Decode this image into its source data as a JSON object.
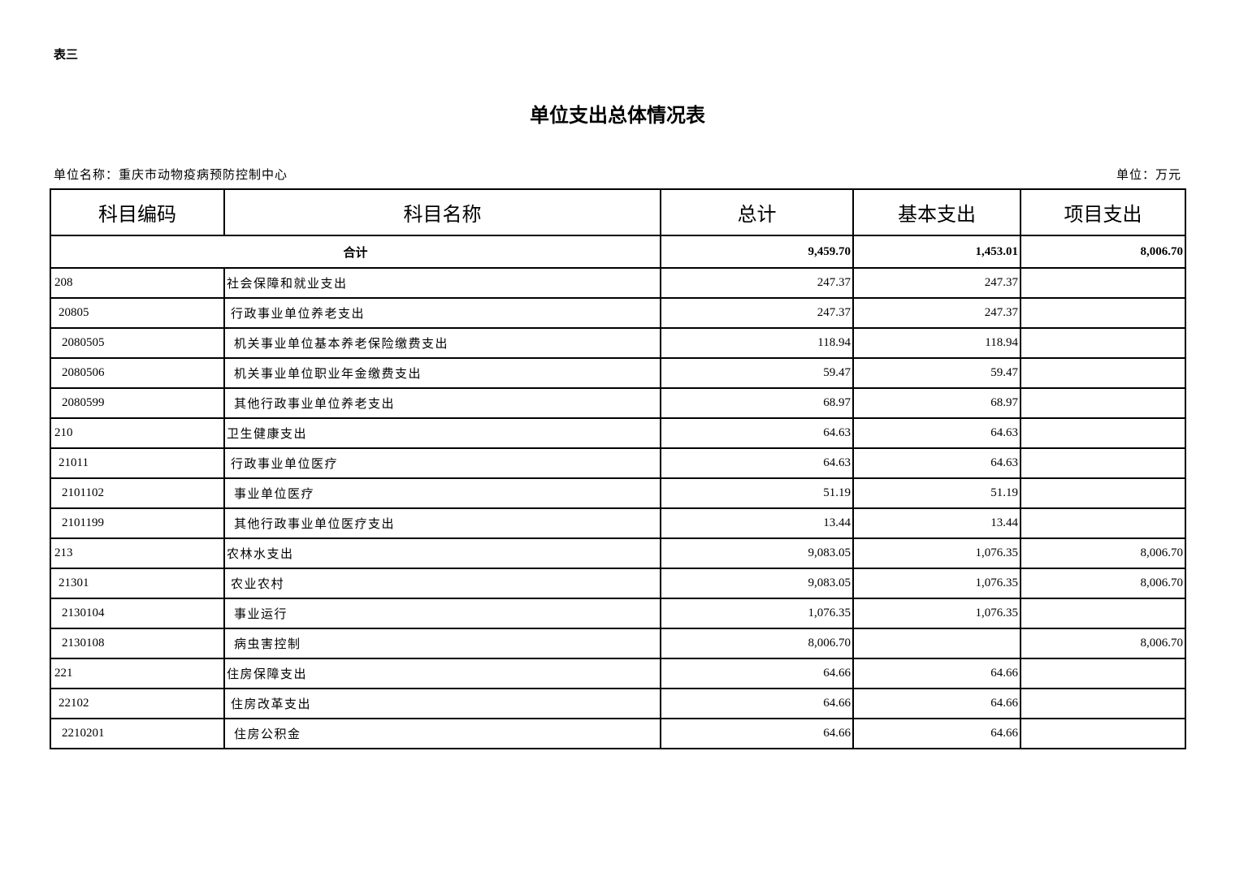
{
  "doc_label": "表三",
  "title": "单位支出总体情况表",
  "unit_name": "单位名称：重庆市动物疫病预防控制中心",
  "unit": "单位：万元",
  "columns": [
    "科目编码",
    "科目名称",
    "总计",
    "基本支出",
    "项目支出"
  ],
  "total": {
    "label": "合计",
    "total": "9,459.70",
    "basic": "1,453.01",
    "project": "8,006.70"
  },
  "rows": [
    {
      "code": "208",
      "name": "社会保障和就业支出",
      "total": "247.37",
      "basic": "247.37",
      "project": "",
      "level": 1
    },
    {
      "code": "20805",
      "name": "行政事业单位养老支出",
      "total": "247.37",
      "basic": "247.37",
      "project": "",
      "level": 2
    },
    {
      "code": "2080505",
      "name": "机关事业单位基本养老保险缴费支出",
      "total": "118.94",
      "basic": "118.94",
      "project": "",
      "level": 3
    },
    {
      "code": "2080506",
      "name": "机关事业单位职业年金缴费支出",
      "total": "59.47",
      "basic": "59.47",
      "project": "",
      "level": 3
    },
    {
      "code": "2080599",
      "name": "其他行政事业单位养老支出",
      "total": "68.97",
      "basic": "68.97",
      "project": "",
      "level": 3
    },
    {
      "code": "210",
      "name": "卫生健康支出",
      "total": "64.63",
      "basic": "64.63",
      "project": "",
      "level": 1
    },
    {
      "code": "21011",
      "name": "行政事业单位医疗",
      "total": "64.63",
      "basic": "64.63",
      "project": "",
      "level": 2
    },
    {
      "code": "2101102",
      "name": "事业单位医疗",
      "total": "51.19",
      "basic": "51.19",
      "project": "",
      "level": 3
    },
    {
      "code": "2101199",
      "name": "其他行政事业单位医疗支出",
      "total": "13.44",
      "basic": "13.44",
      "project": "",
      "level": 3
    },
    {
      "code": "213",
      "name": "农林水支出",
      "total": "9,083.05",
      "basic": "1,076.35",
      "project": "8,006.70",
      "level": 1
    },
    {
      "code": "21301",
      "name": "农业农村",
      "total": "9,083.05",
      "basic": "1,076.35",
      "project": "8,006.70",
      "level": 2
    },
    {
      "code": "2130104",
      "name": "事业运行",
      "total": "1,076.35",
      "basic": "1,076.35",
      "project": "",
      "level": 3
    },
    {
      "code": "2130108",
      "name": "病虫害控制",
      "total": "8,006.70",
      "basic": "",
      "project": "8,006.70",
      "level": 3
    },
    {
      "code": "221",
      "name": "住房保障支出",
      "total": "64.66",
      "basic": "64.66",
      "project": "",
      "level": 1
    },
    {
      "code": "22102",
      "name": "住房改革支出",
      "total": "64.66",
      "basic": "64.66",
      "project": "",
      "level": 2
    },
    {
      "code": "2210201",
      "name": "住房公积金",
      "total": "64.66",
      "basic": "64.66",
      "project": "",
      "level": 3
    }
  ]
}
